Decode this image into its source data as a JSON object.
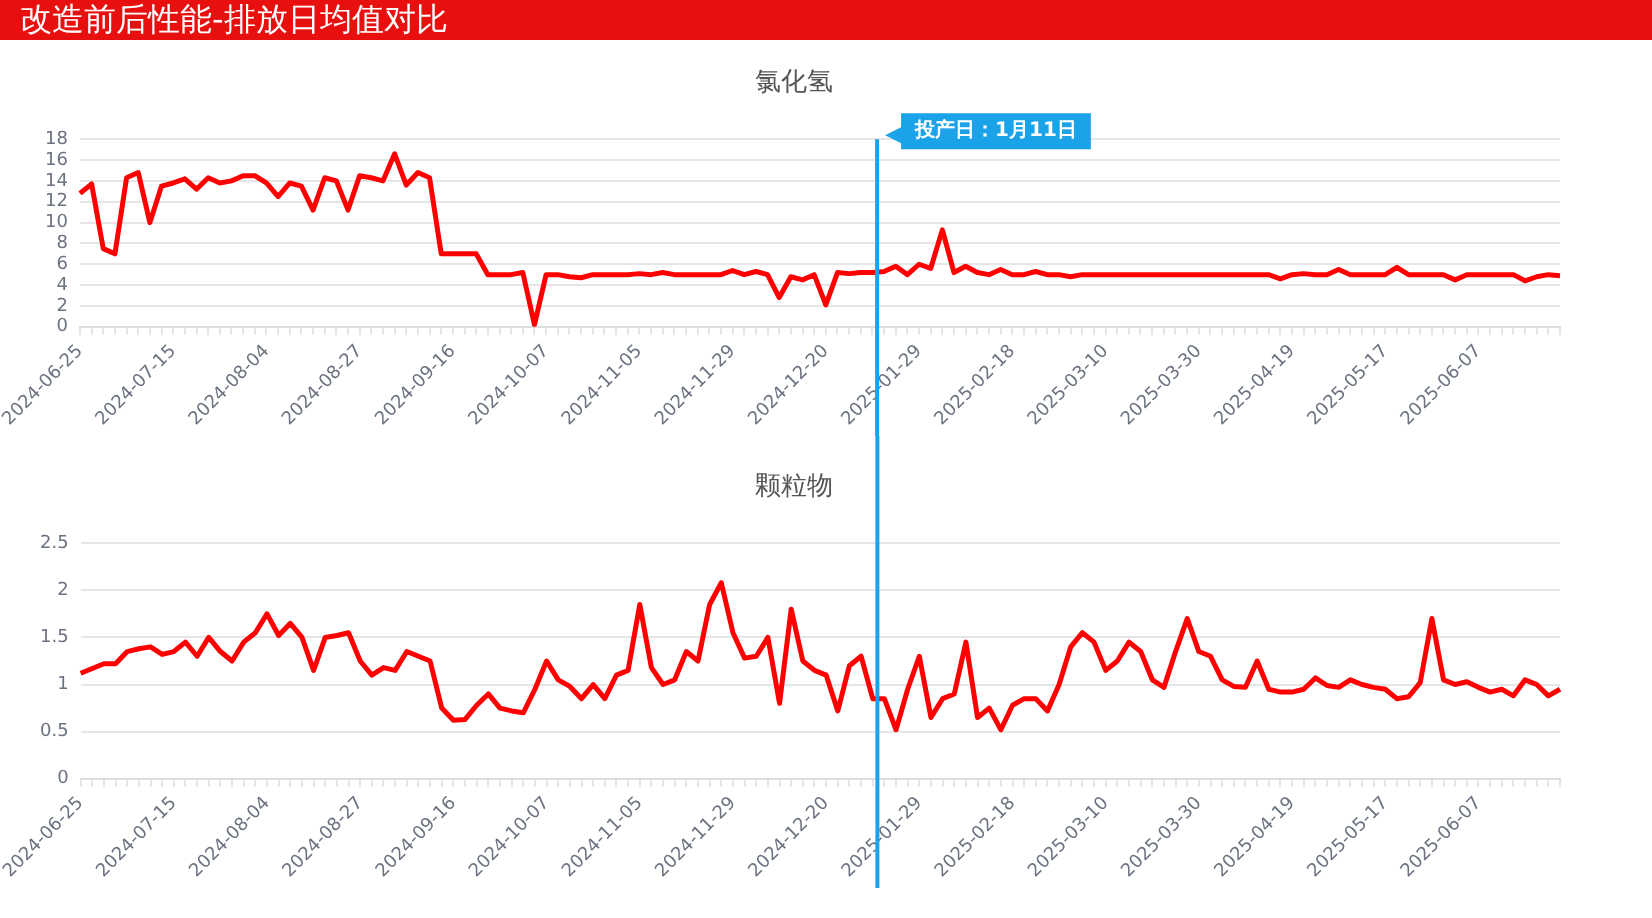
{
  "chart_data": [
    {
      "type": "line",
      "title": "改造前后性能-排放日均值对比",
      "subtitle": "氯化氢",
      "categories": [
        "2024-06-25",
        null,
        null,
        null,
        null,
        null,
        null,
        null,
        "2024-07-15",
        null,
        null,
        null,
        null,
        null,
        null,
        null,
        "2024-08-04",
        null,
        null,
        null,
        null,
        null,
        null,
        null,
        "2024-08-27",
        null,
        null,
        null,
        null,
        null,
        null,
        null,
        "2024-09-16",
        null,
        null,
        null,
        null,
        null,
        null,
        null,
        "2024-10-07",
        null,
        null,
        null,
        null,
        null,
        null,
        null,
        "2024-11-05",
        null,
        null,
        null,
        null,
        null,
        null,
        null,
        "2024-11-29",
        null,
        null,
        null,
        null,
        null,
        null,
        null,
        "2024-12-20",
        null,
        null,
        null,
        null,
        null,
        null,
        null,
        "2025-01-29",
        null,
        null,
        null,
        null,
        null,
        null,
        null,
        "2025-02-18",
        null,
        null,
        null,
        null,
        null,
        null,
        null,
        "2025-03-10",
        null,
        null,
        null,
        null,
        null,
        null,
        null,
        "2025-03-30",
        null,
        null,
        null,
        null,
        null,
        null,
        null,
        "2025-04-19",
        null,
        null,
        null,
        null,
        null,
        null,
        null,
        "2025-05-17",
        null,
        null,
        null,
        null,
        null,
        null,
        null,
        "2025-06-07",
        null,
        null,
        null,
        null,
        null,
        null,
        null
      ],
      "series": [
        {
          "color": "#ff0000",
          "values": [
            12.8,
            13.7,
            7.5,
            7.0,
            14.3,
            14.8,
            10.0,
            13.5,
            13.8,
            14.2,
            13.2,
            14.3,
            13.8,
            14.0,
            14.5,
            14.5,
            13.8,
            12.5,
            13.8,
            13.5,
            11.2,
            14.3,
            14.0,
            11.2,
            14.5,
            14.3,
            14.0,
            16.6,
            13.6,
            14.8,
            14.3,
            7.0,
            7.0,
            7.0,
            7.0,
            5.0,
            5.0,
            5.0,
            5.2,
            0.2,
            5.0,
            5.0,
            4.8,
            4.7,
            5.0,
            5.0,
            5.0,
            5.0,
            5.1,
            5.0,
            5.2,
            5.0,
            5.0,
            5.0,
            5.0,
            5.0,
            5.4,
            5.0,
            5.3,
            5.0,
            2.8,
            4.8,
            4.5,
            5.0,
            2.1,
            5.2,
            5.1,
            5.2,
            5.2,
            5.3,
            5.8,
            5.0,
            6.0,
            5.6,
            9.3,
            5.2,
            5.8,
            5.2,
            5.0,
            5.5,
            5.0,
            5.0,
            5.3,
            5.0,
            5.0,
            4.8,
            5.0,
            5.0,
            5.0,
            5.0,
            5.0,
            5.0,
            5.0,
            5.0,
            5.0,
            5.0,
            5.0,
            5.0,
            5.0,
            5.0,
            5.0,
            5.0,
            5.0,
            4.6,
            5.0,
            5.1,
            5.0,
            5.0,
            5.5,
            5.0,
            5.0,
            5.0,
            5.0,
            5.7,
            5.0,
            5.0,
            5.0,
            5.0,
            4.5,
            5.0,
            5.0,
            5.0,
            5.0,
            5.0,
            4.4,
            4.8,
            5.0,
            4.9
          ]
        }
      ],
      "ylim": [
        0,
        18
      ],
      "yticks": [
        0,
        2,
        4,
        6,
        8,
        10,
        12,
        14,
        16,
        18
      ],
      "grid": "y",
      "marker": "none",
      "line_style": "solid",
      "ref_lines": [
        {
          "axis": "x",
          "label": "投产日：1月11日",
          "color": "#1aa3e8"
        }
      ]
    },
    {
      "type": "line",
      "title": "颗粒物",
      "categories": [
        "2024-06-25",
        null,
        null,
        null,
        null,
        null,
        null,
        null,
        "2024-07-15",
        null,
        null,
        null,
        null,
        null,
        null,
        null,
        "2024-08-04",
        null,
        null,
        null,
        null,
        null,
        null,
        null,
        "2024-08-27",
        null,
        null,
        null,
        null,
        null,
        null,
        null,
        "2024-09-16",
        null,
        null,
        null,
        null,
        null,
        null,
        null,
        "2024-10-07",
        null,
        null,
        null,
        null,
        null,
        null,
        null,
        "2024-11-05",
        null,
        null,
        null,
        null,
        null,
        null,
        null,
        "2024-11-29",
        null,
        null,
        null,
        null,
        null,
        null,
        null,
        "2024-12-20",
        null,
        null,
        null,
        null,
        null,
        null,
        null,
        "2025-01-29",
        null,
        null,
        null,
        null,
        null,
        null,
        null,
        "2025-02-18",
        null,
        null,
        null,
        null,
        null,
        null,
        null,
        "2025-03-10",
        null,
        null,
        null,
        null,
        null,
        null,
        null,
        "2025-03-30",
        null,
        null,
        null,
        null,
        null,
        null,
        null,
        "2025-04-19",
        null,
        null,
        null,
        null,
        null,
        null,
        null,
        "2025-05-17",
        null,
        null,
        null,
        null,
        null,
        null,
        null,
        "2025-06-07",
        null,
        null,
        null,
        null,
        null,
        null,
        null
      ],
      "series": [
        {
          "color": "#ff0000",
          "values": [
            1.12,
            1.17,
            1.22,
            1.22,
            1.35,
            1.38,
            1.4,
            1.32,
            1.35,
            1.45,
            1.3,
            1.5,
            1.35,
            1.25,
            1.45,
            1.55,
            1.75,
            1.52,
            1.65,
            1.5,
            1.15,
            1.5,
            1.52,
            1.55,
            1.25,
            1.1,
            1.18,
            1.15,
            1.35,
            1.3,
            1.25,
            0.75,
            0.62,
            0.63,
            0.78,
            0.9,
            0.75,
            0.72,
            0.7,
            0.95,
            1.25,
            1.05,
            0.98,
            0.85,
            1.0,
            0.85,
            1.1,
            1.15,
            1.85,
            1.18,
            1.0,
            1.05,
            1.35,
            1.25,
            1.85,
            2.08,
            1.55,
            1.28,
            1.3,
            1.5,
            0.8,
            1.8,
            1.25,
            1.15,
            1.1,
            0.72,
            1.2,
            1.3,
            0.85,
            0.85,
            0.52,
            0.95,
            1.3,
            0.65,
            0.85,
            0.9,
            1.45,
            0.65,
            0.75,
            0.52,
            0.78,
            0.85,
            0.85,
            0.72,
            1.0,
            1.4,
            1.55,
            1.45,
            1.15,
            1.25,
            1.45,
            1.35,
            1.05,
            0.97,
            1.35,
            1.7,
            1.35,
            1.3,
            1.05,
            0.98,
            0.97,
            1.25,
            0.95,
            0.92,
            0.92,
            0.95,
            1.07,
            0.99,
            0.97,
            1.05,
            1.0,
            0.97,
            0.95,
            0.85,
            0.87,
            1.02,
            1.7,
            1.05,
            1.0,
            1.03,
            0.97,
            0.92,
            0.95,
            0.88,
            1.05,
            1.0,
            0.88,
            0.95
          ]
        }
      ],
      "ylim": [
        0,
        2.5
      ],
      "yticks": [
        0,
        0.5,
        1,
        1.5,
        2,
        2.5
      ],
      "grid": "y",
      "marker": "none",
      "line_style": "solid"
    }
  ]
}
